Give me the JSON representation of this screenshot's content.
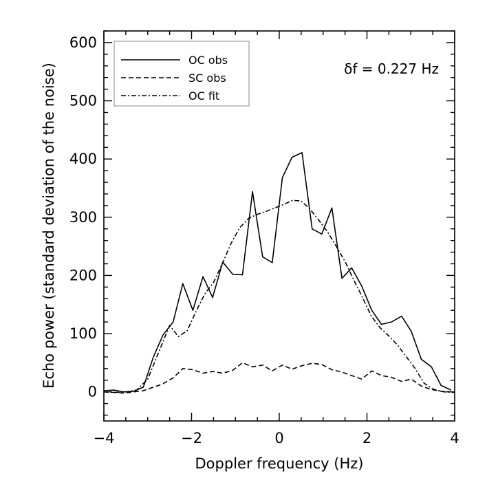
{
  "chart_data": {
    "type": "line",
    "title": "",
    "xlabel": "Doppler frequency (Hz)",
    "ylabel": "Echo power (standard deviation of the noise)",
    "xlim": [
      -4,
      4
    ],
    "ylim": [
      -50,
      620
    ],
    "x_ticks": [
      -4,
      -2,
      0,
      2,
      4
    ],
    "x_tick_labels": [
      "−4",
      "−2",
      "0",
      "2",
      "4"
    ],
    "y_ticks": [
      0,
      100,
      200,
      300,
      400,
      500,
      600
    ],
    "y_tick_labels": [
      "0",
      "100",
      "200",
      "300",
      "400",
      "500",
      "600"
    ],
    "annotation": "δf = 0.227 Hz",
    "legend_position": "top-left",
    "series": [
      {
        "name": "OC obs",
        "style": "solid",
        "x": [
          -4.0,
          -3.78,
          -3.55,
          -3.32,
          -3.1,
          -2.87,
          -2.65,
          -2.42,
          -2.2,
          -1.97,
          -1.74,
          -1.52,
          -1.29,
          -1.06,
          -0.84,
          -0.61,
          -0.38,
          -0.16,
          0.07,
          0.29,
          0.52,
          0.75,
          0.97,
          1.2,
          1.43,
          1.65,
          1.88,
          2.11,
          2.33,
          2.56,
          2.79,
          3.01,
          3.24,
          3.47,
          3.69,
          3.92
        ],
        "y": [
          2,
          3,
          0,
          1,
          8,
          60,
          98,
          120,
          186,
          140,
          198,
          162,
          223,
          202,
          201,
          344,
          232,
          222,
          368,
          403,
          411,
          280,
          271,
          316,
          195,
          213,
          182,
          140,
          116,
          120,
          130,
          104,
          56,
          43,
          11,
          3
        ]
      },
      {
        "name": "SC obs",
        "style": "dashed",
        "x": [
          -4.0,
          -3.78,
          -3.55,
          -3.32,
          -3.1,
          -2.87,
          -2.65,
          -2.42,
          -2.2,
          -1.97,
          -1.74,
          -1.52,
          -1.29,
          -1.06,
          -0.84,
          -0.61,
          -0.38,
          -0.16,
          0.07,
          0.29,
          0.52,
          0.75,
          0.97,
          1.2,
          1.43,
          1.65,
          1.88,
          2.11,
          2.33,
          2.56,
          2.79,
          3.01,
          3.24,
          3.47,
          3.69,
          3.92
        ],
        "y": [
          0,
          -1,
          -2,
          0,
          2,
          8,
          14,
          24,
          40,
          38,
          32,
          35,
          32,
          37,
          50,
          43,
          46,
          36,
          46,
          39,
          45,
          49,
          47,
          38,
          34,
          28,
          22,
          36,
          28,
          25,
          18,
          22,
          10,
          4,
          1,
          0
        ]
      },
      {
        "name": "OC fit",
        "style": "dashdot",
        "x": [
          -4.0,
          -3.75,
          -3.5,
          -3.25,
          -3.0,
          -2.75,
          -2.5,
          -2.3,
          -2.1,
          -1.9,
          -1.7,
          -1.5,
          -1.3,
          -1.1,
          -0.9,
          -0.7,
          -0.5,
          -0.3,
          -0.1,
          0.1,
          0.3,
          0.5,
          0.7,
          0.9,
          1.1,
          1.3,
          1.5,
          1.7,
          1.9,
          2.1,
          2.3,
          2.5,
          2.7,
          2.9,
          3.1,
          3.3,
          3.5,
          3.75,
          4.0
        ],
        "y": [
          0,
          -1,
          0,
          3,
          22,
          68,
          114,
          95,
          105,
          138,
          168,
          188,
          220,
          255,
          282,
          298,
          305,
          310,
          316,
          322,
          329,
          328,
          314,
          295,
          275,
          250,
          224,
          192,
          162,
          130,
          110,
          96,
          80,
          60,
          40,
          15,
          5,
          0,
          -1
        ]
      }
    ]
  }
}
